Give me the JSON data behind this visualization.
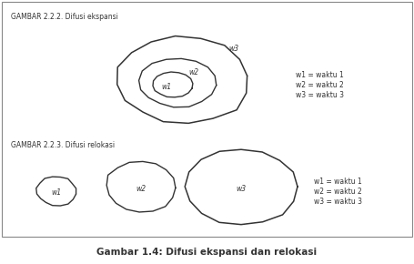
{
  "title_top1": "GAMBAR 2.2.2. Difusi ekspansi",
  "title_top2": "GAMBAR 2.2.3. Difusi relokasi",
  "caption": "Gambar 1.4: Difusi ekspansi dan relokasi",
  "legend1": [
    "w1 = waktu 1",
    "w2 = waktu 2",
    "w3 = waktu 3"
  ],
  "legend2": [
    "w1 = waktu 1",
    "w2 = waktu 2",
    "w3 = waktu 3"
  ],
  "bg_color": "#ffffff",
  "line_color": "#333333",
  "text_color": "#333333",
  "border_color": "#888888",
  "figsize": [
    4.55,
    2.9
  ],
  "dpi": 100
}
